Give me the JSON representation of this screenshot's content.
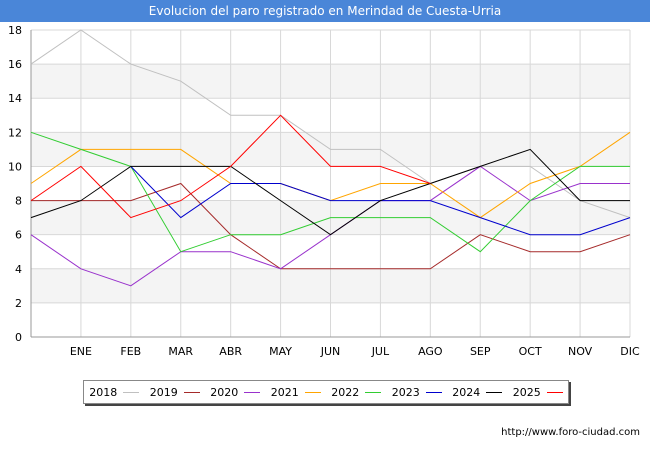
{
  "chart_data": {
    "type": "line",
    "title": "Evolucion del paro registrado en Merindad de Cuesta-Urria",
    "xlabel": "",
    "ylabel": "",
    "ylim": [
      0,
      18
    ],
    "yticks": [
      0,
      2,
      4,
      6,
      8,
      10,
      12,
      14,
      16,
      18
    ],
    "categories": [
      "",
      "ENE",
      "FEB",
      "MAR",
      "ABR",
      "MAY",
      "JUN",
      "JUL",
      "AGO",
      "SEP",
      "OCT",
      "NOV",
      "DIC"
    ],
    "grid": true,
    "legend_position": "bottom",
    "series": [
      {
        "name": "2018",
        "color": "#c0c0c0",
        "values": [
          16,
          18,
          16,
          15,
          13,
          13,
          11,
          11,
          9,
          10,
          10,
          8,
          7
        ]
      },
      {
        "name": "2019",
        "color": "#a52a2a",
        "values": [
          8,
          8,
          8,
          9,
          6,
          4,
          4,
          4,
          4,
          6,
          5,
          5,
          6
        ]
      },
      {
        "name": "2020",
        "color": "#9932cc",
        "values": [
          6,
          4,
          3,
          5,
          5,
          4,
          6,
          8,
          8,
          10,
          8,
          9,
          9
        ]
      },
      {
        "name": "2021",
        "color": "#ffa500",
        "values": [
          9,
          11,
          11,
          11,
          9,
          9,
          8,
          9,
          9,
          7,
          9,
          10,
          12
        ]
      },
      {
        "name": "2022",
        "color": "#32cd32",
        "values": [
          12,
          11,
          10,
          5,
          6,
          6,
          7,
          7,
          7,
          5,
          8,
          10,
          10
        ]
      },
      {
        "name": "2023",
        "color": "#0000cd",
        "values": [
          null,
          null,
          10,
          7,
          9,
          9,
          8,
          8,
          8,
          7,
          6,
          6,
          7
        ]
      },
      {
        "name": "2024",
        "color": "#000000",
        "values": [
          7,
          8,
          10,
          10,
          10,
          8,
          6,
          8,
          9,
          10,
          11,
          8,
          8
        ]
      },
      {
        "name": "2025",
        "color": "#ff0000",
        "values": [
          8,
          10,
          7,
          8,
          10,
          13,
          10,
          10,
          9,
          null,
          null,
          null,
          null
        ]
      }
    ]
  },
  "footer": {
    "url": "http://www.foro-ciudad.com"
  }
}
